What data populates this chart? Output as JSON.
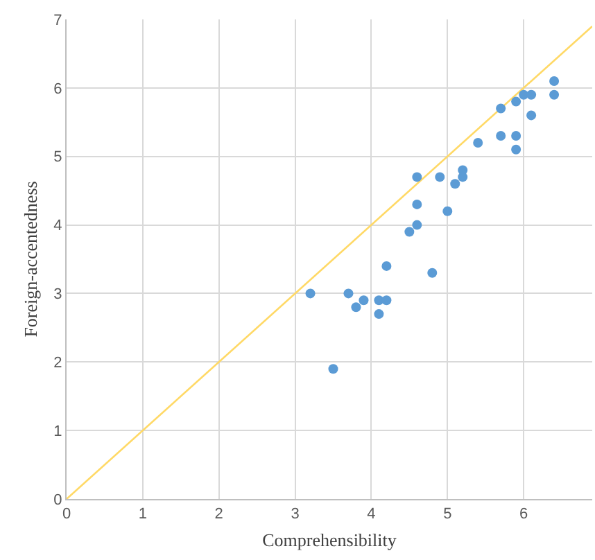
{
  "chart_data": {
    "type": "scatter",
    "xlabel": "Comprehensibility",
    "ylabel": "Foreign-accentedness",
    "xlim": [
      0,
      6.9
    ],
    "ylim": [
      0,
      7
    ],
    "xticks": [
      0,
      1,
      2,
      3,
      4,
      5,
      6
    ],
    "yticks": [
      0,
      1,
      2,
      3,
      4,
      5,
      6,
      7
    ],
    "grid": true,
    "marker": "circle",
    "series": [
      {
        "color": "#5b9bd5",
        "x": [
          3.2,
          3.5,
          3.7,
          3.8,
          3.9,
          4.1,
          4.1,
          4.2,
          4.2,
          4.5,
          4.6,
          4.6,
          4.6,
          4.8,
          4.9,
          5.0,
          5.1,
          5.2,
          5.2,
          5.4,
          5.7,
          5.7,
          5.9,
          5.9,
          5.9,
          6.0,
          6.1,
          6.1,
          6.4,
          6.4
        ],
        "values": [
          3.0,
          1.9,
          3.0,
          2.8,
          2.9,
          2.7,
          2.9,
          2.9,
          3.4,
          3.9,
          4.0,
          4.3,
          4.7,
          3.3,
          4.7,
          4.2,
          4.6,
          4.7,
          4.8,
          5.2,
          5.3,
          5.7,
          5.1,
          5.3,
          5.8,
          5.9,
          5.9,
          5.6,
          6.1,
          5.9
        ]
      },
      {
        "type": "line",
        "color": "#ffd966",
        "x": [
          0,
          6.9
        ],
        "values": [
          0,
          6.9
        ],
        "marker": "none"
      }
    ]
  }
}
